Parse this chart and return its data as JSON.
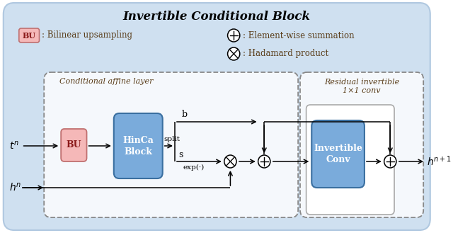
{
  "title": "Invertible Conditional Block",
  "bg_outer": "#cfe0f0",
  "bu_box_color": "#f5b8b8",
  "hinca_box_color": "#7aabdb",
  "inv_conv_box_color": "#7aabdb",
  "inv_conv_outer_color": "#c8daea",
  "text_color": "#5a3e1b",
  "arrow_color": "#000000",
  "label_conditional": "Conditional affine layer",
  "label_residual_1": "Residual invertible",
  "label_residual_2": "1×1 conv",
  "label_bu": "BU",
  "label_hinca_1": "HinCa",
  "label_hinca_2": "Block",
  "label_inv_conv_1": "Invertible",
  "label_inv_conv_2": "Conv",
  "legend1_text": ": Bilinear upsampling",
  "legend2_text": ": Element-wise summation",
  "legend3_text": ": Hadamard product",
  "split_label": "split",
  "b_label": "b",
  "s_label": "s",
  "exp_label": "exp(·)"
}
